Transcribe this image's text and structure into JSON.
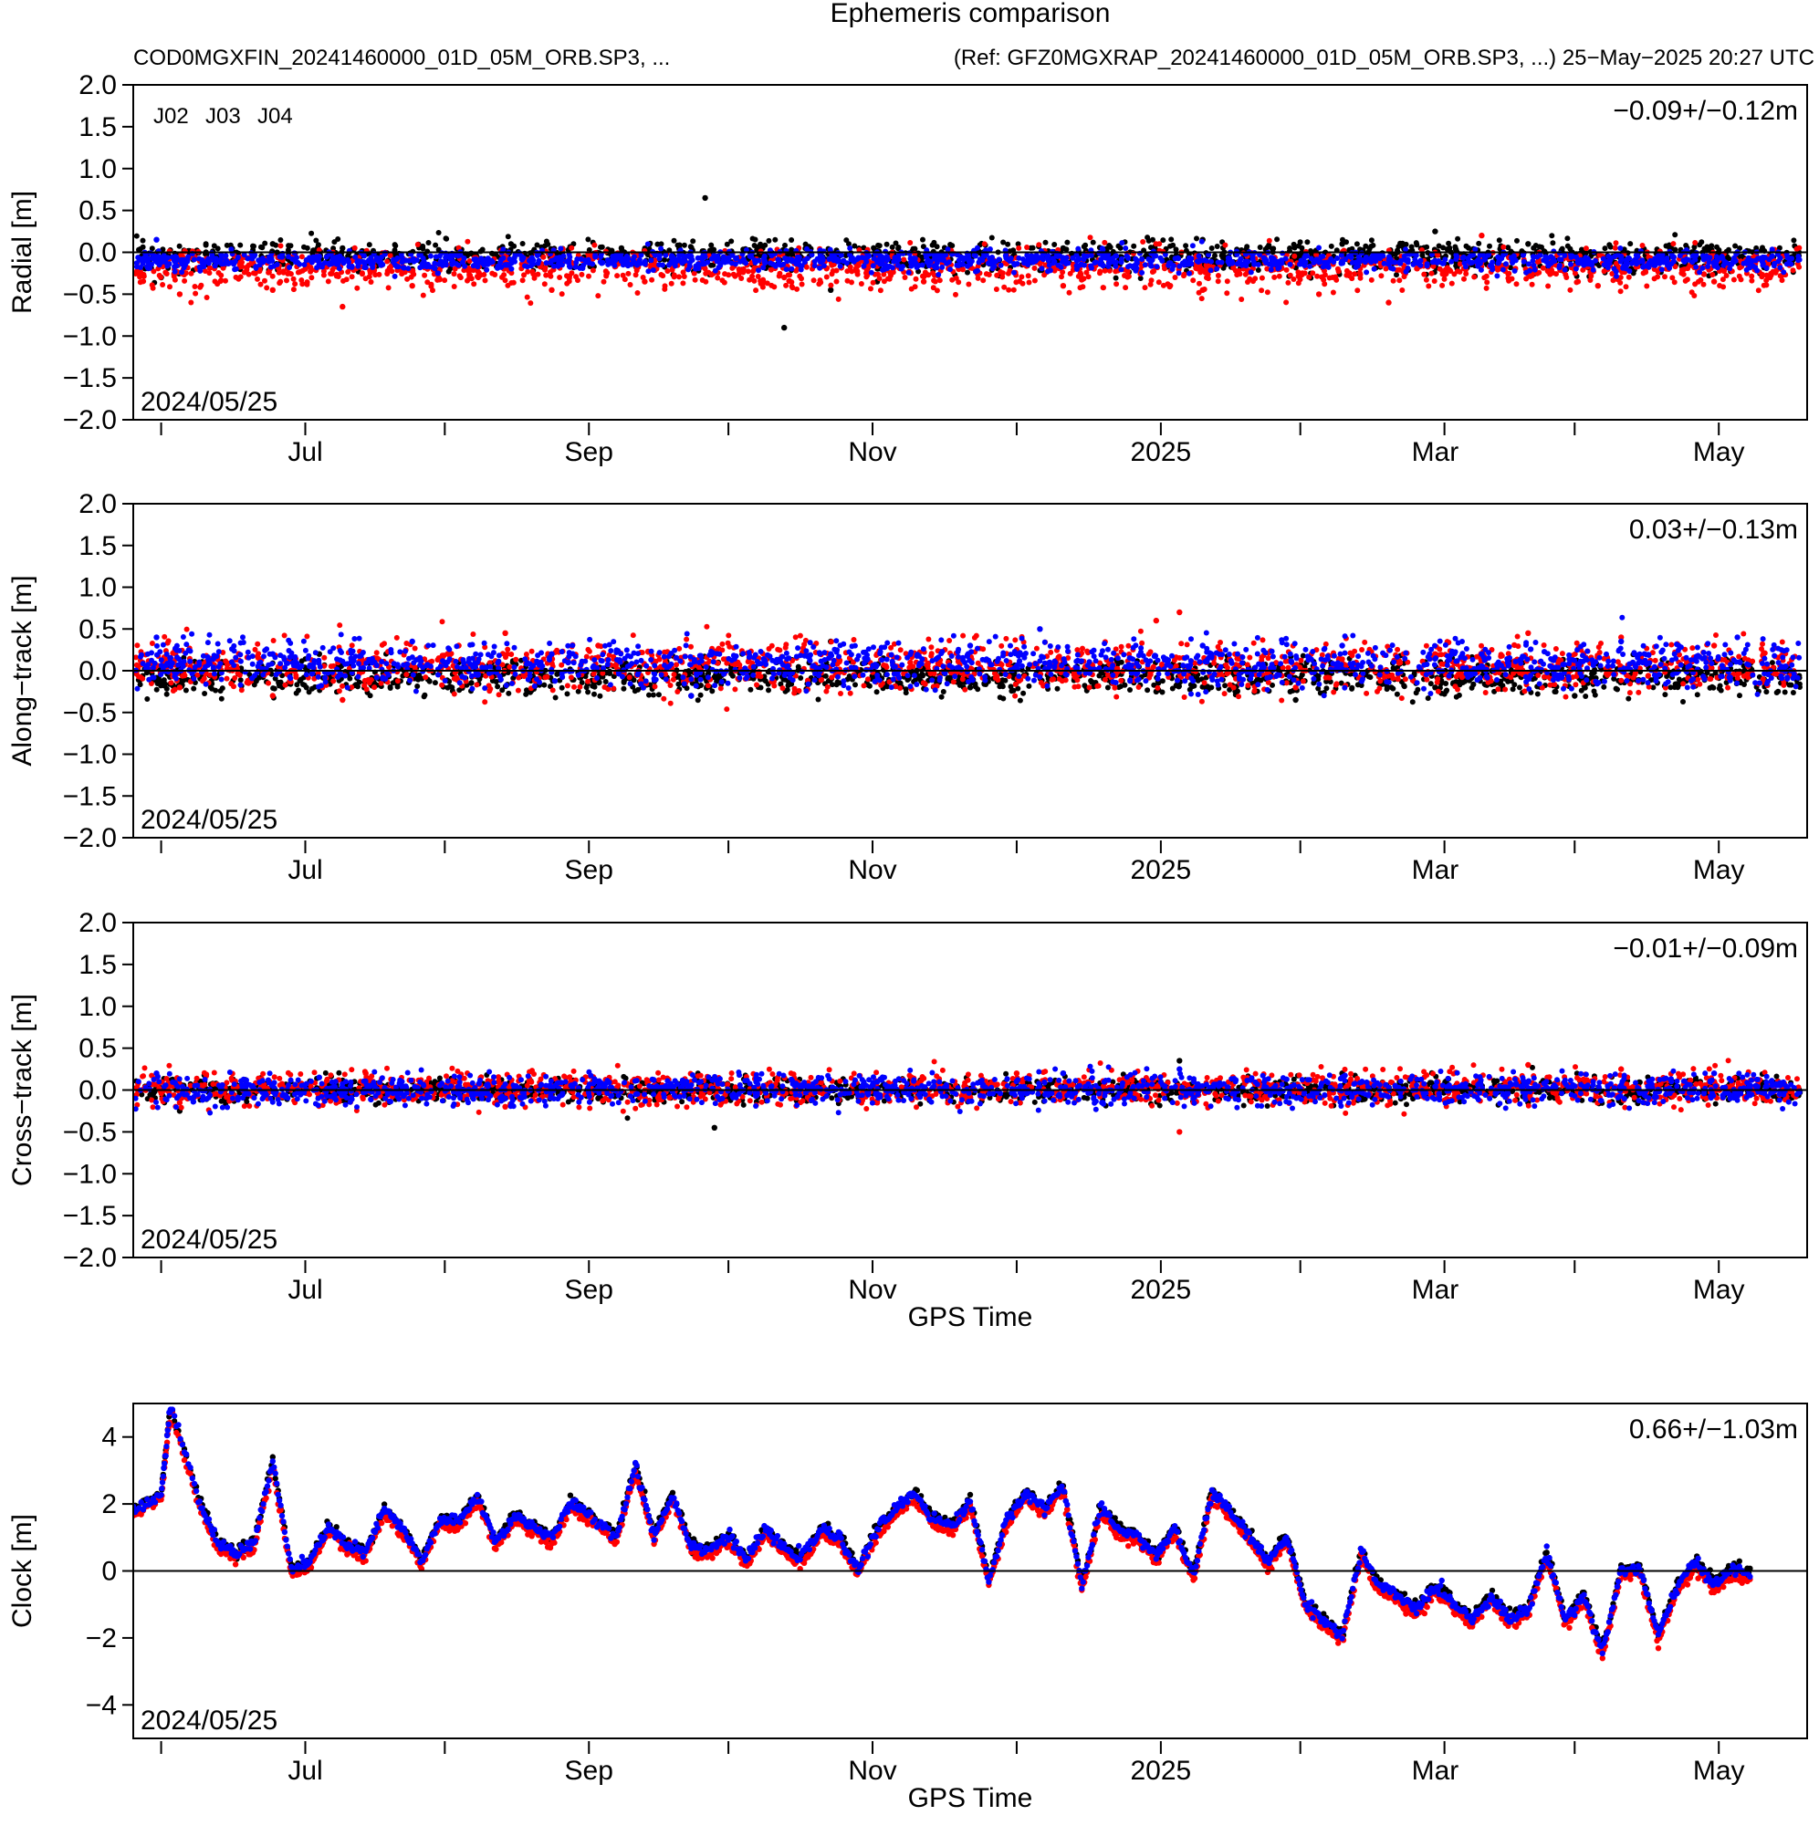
{
  "title": "Ephemeris comparison",
  "subtitle_left": "COD0MGXFIN_20241460000_01D_05M_ORB.SP3, ...",
  "subtitle_right": "(Ref: GFZ0MGXRAP_20241460000_01D_05M_ORB.SP3, ...) 25−May−2025 20:27 UTC",
  "legend": [
    {
      "name": "J02",
      "color": "#000000"
    },
    {
      "name": "J03",
      "color": "#ff0000"
    },
    {
      "name": "J04",
      "color": "#0000ff"
    }
  ],
  "x_tick_labels": [
    "Jul",
    "Sep",
    "Nov",
    "2025",
    "Mar",
    "May"
  ],
  "chart_data": [
    {
      "type": "scatter",
      "ylabel": "Radial [m]",
      "ylim": [
        -2.0,
        2.0
      ],
      "yticks": [
        "2.0",
        "1.5",
        "1.0",
        "0.5",
        "0.0",
        "−0.5",
        "−1.0",
        "−1.5",
        "−2.0"
      ],
      "ytick_values": [
        2.0,
        1.5,
        1.0,
        0.5,
        0.0,
        -0.5,
        -1.0,
        -1.5,
        -2.0
      ],
      "xlabel": "",
      "stat": "−0.09+/−0.12m",
      "date": "2024/05/25",
      "series": [
        {
          "name": "J02",
          "color": "#000000",
          "mean": -0.05,
          "spread": 0.09,
          "x": [
            6,
            18,
            30,
            45,
            60,
            90,
            105,
            123,
            140,
            150,
            160,
            200,
            230,
            260,
            280,
            300,
            325,
            345
          ],
          "y": [
            -0.3,
            -0.15,
            0.1,
            0.05,
            -0.2,
            0.0,
            0.05,
            0.65,
            -0.9,
            -0.45,
            -0.35,
            0.05,
            0.15,
            0.1,
            0.25,
            0.1,
            -0.1,
            0.0
          ]
        },
        {
          "name": "J03",
          "color": "#ff0000",
          "mean": -0.2,
          "spread": 0.12,
          "x": [
            10,
            30,
            45,
            60,
            90,
            110,
            140,
            170,
            200,
            230,
            255,
            270,
            290,
            315,
            340
          ],
          "y": [
            -0.5,
            -0.45,
            -0.65,
            -0.4,
            -0.45,
            -0.35,
            -0.3,
            -0.35,
            -0.4,
            -0.45,
            -0.5,
            -0.6,
            0.2,
            -0.4,
            -0.35
          ]
        },
        {
          "name": "J04",
          "color": "#0000ff",
          "mean": -0.1,
          "spread": 0.06,
          "x": [
            5,
            20,
            40,
            80,
            120,
            160,
            200,
            240,
            280,
            320,
            345
          ],
          "y": [
            0.15,
            -0.1,
            -0.05,
            -0.15,
            -0.05,
            0.0,
            -0.1,
            0.0,
            -0.1,
            -0.05,
            0.0
          ]
        }
      ]
    },
    {
      "type": "scatter",
      "ylabel": "Along−track [m]",
      "ylim": [
        -2.0,
        2.0
      ],
      "yticks": [
        "2.0",
        "1.5",
        "1.0",
        "0.5",
        "0.0",
        "−0.5",
        "−1.0",
        "−1.5",
        "−2.0"
      ],
      "ytick_values": [
        2.0,
        1.5,
        1.0,
        0.5,
        0.0,
        -0.5,
        -1.0,
        -1.5,
        -2.0
      ],
      "xlabel": "",
      "stat": "0.03+/−0.13m",
      "date": "2024/05/25",
      "series": [
        {
          "name": "J02",
          "color": "#000000",
          "mean": -0.08,
          "spread": 0.1,
          "x": [
            10,
            40,
            70,
            100,
            120,
            150,
            180,
            220,
            250,
            280,
            310,
            340
          ],
          "y": [
            -0.2,
            0.2,
            0.1,
            -0.1,
            -0.3,
            0.35,
            -0.2,
            -0.25,
            -0.35,
            -0.2,
            -0.3,
            0.1
          ]
        },
        {
          "name": "J03",
          "color": "#ff0000",
          "mean": 0.05,
          "spread": 0.15,
          "x": [
            10,
            30,
            45,
            70,
            80,
            100,
            130,
            160,
            190,
            220,
            225,
            250,
            280,
            300,
            320,
            340
          ],
          "y": [
            -0.2,
            -0.3,
            -0.35,
            0.3,
            0.45,
            0.3,
            0.1,
            0.2,
            0.25,
            0.6,
            0.7,
            -0.2,
            0.2,
            0.45,
            0.4,
            0.3
          ]
        },
        {
          "name": "J04",
          "color": "#0000ff",
          "mean": 0.08,
          "spread": 0.13,
          "x": [
            5,
            30,
            60,
            90,
            120,
            150,
            180,
            195,
            230,
            260,
            290,
            320,
            345
          ],
          "y": [
            0.4,
            0.2,
            0.35,
            0.2,
            -0.3,
            0.2,
            0.3,
            0.5,
            0.3,
            0.3,
            0.2,
            0.35,
            0.4
          ]
        }
      ]
    },
    {
      "type": "scatter",
      "ylabel": "Cross−track [m]",
      "ylim": [
        -2.0,
        2.0
      ],
      "yticks": [
        "2.0",
        "1.5",
        "1.0",
        "0.5",
        "0.0",
        "−0.5",
        "−1.0",
        "−1.5",
        "−2.0"
      ],
      "ytick_values": [
        2.0,
        1.5,
        1.0,
        0.5,
        0.0,
        -0.5,
        -1.0,
        -1.5,
        -2.0
      ],
      "xlabel": "GPS Time",
      "stat": "−0.01+/−0.09m",
      "date": "2024/05/25",
      "series": [
        {
          "name": "J02",
          "color": "#000000",
          "mean": 0.0,
          "spread": 0.07,
          "x": [
            10,
            60,
            100,
            125,
            160,
            200,
            225,
            260,
            300,
            340
          ],
          "y": [
            -0.25,
            0.1,
            -0.1,
            -0.45,
            0.1,
            0.2,
            0.35,
            0.2,
            -0.15,
            0.1
          ]
        },
        {
          "name": "J03",
          "color": "#ff0000",
          "mean": 0.02,
          "spread": 0.1,
          "x": [
            10,
            50,
            80,
            120,
            160,
            190,
            225,
            260,
            300,
            320,
            340
          ],
          "y": [
            -0.15,
            0.2,
            -0.2,
            0.1,
            -0.15,
            0.2,
            -0.5,
            0.15,
            0.3,
            0.25,
            0.1
          ]
        },
        {
          "name": "J04",
          "color": "#0000ff",
          "mean": 0.0,
          "spread": 0.09,
          "x": [
            5,
            40,
            80,
            120,
            160,
            200,
            225,
            260,
            300,
            340
          ],
          "y": [
            0.2,
            0.15,
            -0.1,
            0.0,
            0.1,
            0.2,
            0.25,
            0.15,
            0.1,
            0.2
          ]
        }
      ]
    },
    {
      "type": "scatter",
      "ylabel": "Clock [m]",
      "ylim": [
        -5.0,
        5.0
      ],
      "yticks": [
        "4",
        "2",
        "0",
        "−2",
        "−4"
      ],
      "ytick_values": [
        4,
        2,
        0,
        -2,
        -4
      ],
      "xlabel": "GPS Time",
      "stat": "0.66+/−1.03m",
      "date": "2024/05/25",
      "series": [
        {
          "name": "J02",
          "color": "#000000",
          "mean": 0.0,
          "spread": 0.1,
          "x": [],
          "y": []
        },
        {
          "name": "J03",
          "color": "#ff0000",
          "mean": 0.0,
          "spread": 0.1,
          "x": [],
          "y": []
        },
        {
          "name": "J04",
          "color": "#0000ff",
          "mean": 0.0,
          "spread": 0.1,
          "x": [],
          "y": []
        }
      ],
      "curve": {
        "x": [
          0,
          6,
          8,
          14,
          18,
          22,
          26,
          30,
          34,
          38,
          42,
          46,
          50,
          54,
          58,
          62,
          66,
          70,
          74,
          78,
          82,
          86,
          90,
          94,
          98,
          104,
          108,
          112,
          116,
          120,
          124,
          128,
          132,
          136,
          140,
          144,
          148,
          152,
          156,
          160,
          164,
          168,
          172,
          176,
          180,
          184,
          188,
          192,
          196,
          200,
          204,
          208,
          212,
          216,
          220,
          224,
          228,
          232,
          236,
          240,
          244,
          248,
          252,
          256,
          260,
          264,
          268,
          272,
          276,
          280,
          284,
          288,
          292,
          296,
          300,
          304,
          308,
          312,
          316,
          320,
          324,
          328,
          332,
          336,
          340,
          344,
          348
        ],
        "y": [
          1.8,
          2.2,
          4.9,
          2.1,
          0.8,
          0.5,
          0.8,
          3.2,
          0.0,
          0.2,
          1.3,
          0.7,
          0.5,
          1.8,
          1.2,
          0.2,
          1.5,
          1.4,
          2.2,
          0.8,
          1.6,
          1.3,
          0.9,
          2.0,
          1.6,
          1.0,
          3.1,
          1.0,
          2.2,
          0.7,
          0.6,
          1.0,
          0.3,
          1.2,
          0.6,
          0.4,
          1.2,
          0.9,
          0.0,
          1.2,
          1.8,
          2.3,
          1.5,
          1.3,
          2.0,
          -0.3,
          1.5,
          2.3,
          1.8,
          2.5,
          -0.5,
          1.8,
          1.2,
          1.0,
          0.4,
          1.2,
          -0.2,
          2.3,
          1.7,
          1.0,
          0.2,
          1.0,
          -1.0,
          -1.5,
          -2.0,
          0.5,
          -0.5,
          -0.8,
          -1.2,
          -0.5,
          -1.0,
          -1.5,
          -0.8,
          -1.5,
          -1.2,
          0.5,
          -1.5,
          -0.8,
          -2.5,
          0.0,
          0.0,
          -2.0,
          -0.5,
          0.2,
          -0.4,
          0.0,
          -0.2
        ]
      }
    }
  ]
}
